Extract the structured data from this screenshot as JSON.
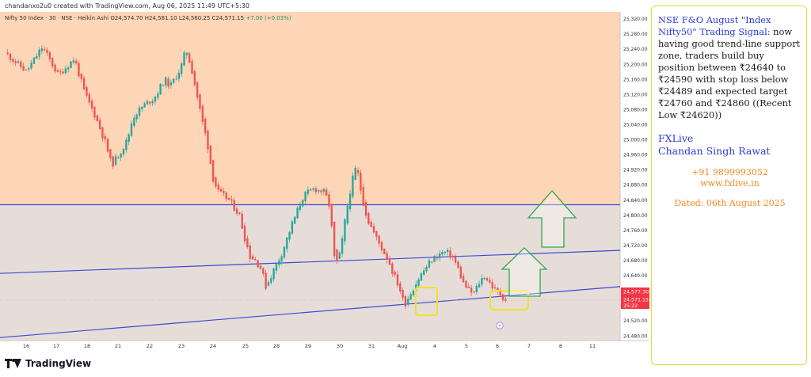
{
  "header": {
    "credit": "chandanxo2u0 created with TradingView.com, Aug 06, 2025 11:49 UTC+5:30",
    "symbol": "Nifty 50 Index · 30 · NSE · Heikin Ashi",
    "ohlc": {
      "open": "O24,574.70",
      "high": "H24,581.10",
      "low": "L24,560.25",
      "close": "C24,571.15",
      "change": "+7.00 (+0.03%)"
    }
  },
  "footer": {
    "brand": "TradingView"
  },
  "colors": {
    "zone_upper": "#fdd5b7",
    "zone_lower": "#e6ddd8",
    "up": "#26a69a",
    "down": "#ef5350",
    "trend": "#3a4bd8",
    "price_tag": "#f23645",
    "highlight_box": "#f1e02a",
    "arrow": "#2fa84f"
  },
  "chart_data": {
    "type": "candlestick",
    "style": "Heikin Ashi",
    "timeframe": "30",
    "y_ticks": [
      24480,
      24520,
      24560,
      24600,
      24640,
      24680,
      24720,
      24760,
      24800,
      24840,
      24880,
      24920,
      24960,
      25000,
      25040,
      25080,
      25120,
      25160,
      25200,
      25240,
      25280,
      25320
    ],
    "y_tick_labels": [
      "24,480.00",
      "24,520.00",
      "24,560.00",
      "24,600.00",
      "24,640.00",
      "24,680.00",
      "24,720.00",
      "24,760.00",
      "24,800.00",
      "24,840.00",
      "24,880.00",
      "24,920.00",
      "24,960.00",
      "25,000.00",
      "25,040.00",
      "25,080.00",
      "25,120.00",
      "25,160.00",
      "25,200.00",
      "25,240.00",
      "25,280.00",
      "25,320.00"
    ],
    "ylim": [
      24467,
      25338
    ],
    "x_ticks": [
      "16",
      "17",
      "18",
      "21",
      "22",
      "23",
      "24",
      "25",
      "28",
      "29",
      "30",
      "31",
      "Aug",
      "4",
      "5",
      "6",
      "7",
      "8",
      "11"
    ],
    "horizontal_level": 24827,
    "last_price": "24,571.15",
    "current_level_label": "24,577.30",
    "countdown": "25:22",
    "path": [
      [
        0,
        25230
      ],
      [
        4,
        25180
      ],
      [
        7,
        25245
      ],
      [
        10,
        25170
      ],
      [
        13,
        25215
      ],
      [
        15,
        25120
      ],
      [
        17,
        25060
      ],
      [
        19,
        24985
      ],
      [
        20,
        24930
      ],
      [
        22,
        24975
      ],
      [
        23,
        25000
      ],
      [
        24,
        25060
      ],
      [
        26,
        25090
      ],
      [
        28,
        25110
      ],
      [
        30,
        25160
      ],
      [
        31,
        25140
      ],
      [
        33,
        25190
      ],
      [
        34,
        25240
      ],
      [
        35,
        25190
      ],
      [
        36,
        25120
      ],
      [
        37,
        25050
      ],
      [
        38,
        24990
      ],
      [
        39,
        24900
      ],
      [
        40,
        24860
      ],
      [
        42,
        24840
      ],
      [
        44,
        24800
      ],
      [
        45,
        24740
      ],
      [
        46,
        24690
      ],
      [
        47,
        24680
      ],
      [
        48,
        24660
      ],
      [
        49,
        24610
      ],
      [
        50,
        24640
      ],
      [
        52,
        24700
      ],
      [
        54,
        24780
      ],
      [
        56,
        24850
      ],
      [
        58,
        24870
      ],
      [
        60,
        24860
      ],
      [
        61,
        24820
      ],
      [
        62,
        24660
      ],
      [
        63,
        24700
      ],
      [
        64,
        24800
      ],
      [
        65,
        24880
      ],
      [
        66,
        24930
      ],
      [
        67,
        24850
      ],
      [
        68,
        24790
      ],
      [
        70,
        24730
      ],
      [
        72,
        24680
      ],
      [
        73,
        24640
      ],
      [
        74,
        24610
      ],
      [
        75,
        24560
      ],
      [
        76,
        24590
      ],
      [
        78,
        24640
      ],
      [
        80,
        24680
      ],
      [
        82,
        24700
      ],
      [
        83,
        24700
      ],
      [
        84,
        24690
      ],
      [
        85,
        24660
      ],
      [
        86,
        24620
      ],
      [
        87,
        24600
      ],
      [
        88,
        24590
      ],
      [
        89,
        24620
      ],
      [
        90,
        24640
      ],
      [
        91,
        24620
      ],
      [
        92,
        24600
      ],
      [
        93,
        24590
      ],
      [
        94,
        24575
      ]
    ],
    "upper_trendline": {
      "from": 24645,
      "to": 24706
    },
    "lower_trendline": {
      "from": 24475,
      "to": 24610
    }
  },
  "panel": {
    "signal_title": "NSE F&O August \"Index Nifty50\" Trading Signal:",
    "signal_body": " now having good trend-line support zone, traders build buy position between ₹24640 to ₹24590 with stop loss below ₹24489 and expected target ₹24760 and ₹24860 ((Recent Low ₹24620))",
    "brand": "FXLive",
    "author": "Chandan Singh Rawat",
    "phone": "+91 9899993052",
    "website": "www.fxlive.in",
    "dated": "Dated: 06th August 2025"
  }
}
